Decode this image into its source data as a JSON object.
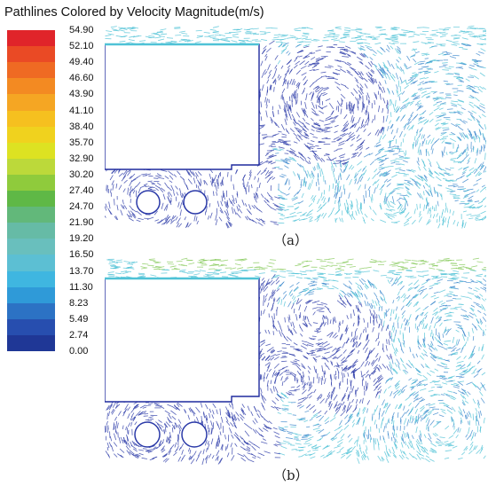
{
  "title": "Pathlines Colored by Velocity Magnitude(m/s)",
  "colorbar": {
    "labels": [
      "54.90",
      "52.10",
      "49.40",
      "46.60",
      "43.90",
      "41.10",
      "38.40",
      "35.70",
      "32.90",
      "30.20",
      "27.40",
      "24.70",
      "21.90",
      "19.20",
      "16.50",
      "13.70",
      "11.30",
      "8.23",
      "5.49",
      "2.74",
      "0.00"
    ],
    "colors": [
      "#e0242a",
      "#ea4a25",
      "#ef6a23",
      "#f38a22",
      "#f5a623",
      "#f6c01f",
      "#f0d21e",
      "#dde222",
      "#bcd93a",
      "#8fcb3c",
      "#5fb846",
      "#62b87a",
      "#66bba6",
      "#69bfbd",
      "#5cbfd3",
      "#3fb6e0",
      "#2f9ad8",
      "#2c72c4",
      "#274eaf",
      "#1f3796"
    ]
  },
  "panels": [
    {
      "id": "a",
      "caption": "（a）"
    },
    {
      "id": "b",
      "caption": "（b）"
    }
  ],
  "colors": {
    "inlet": "#4fc2d6",
    "fast_jet": "#86c95a",
    "recirculation": "#2a39a8",
    "wall": "#1e2a9e",
    "mid": "#3a86cc"
  }
}
